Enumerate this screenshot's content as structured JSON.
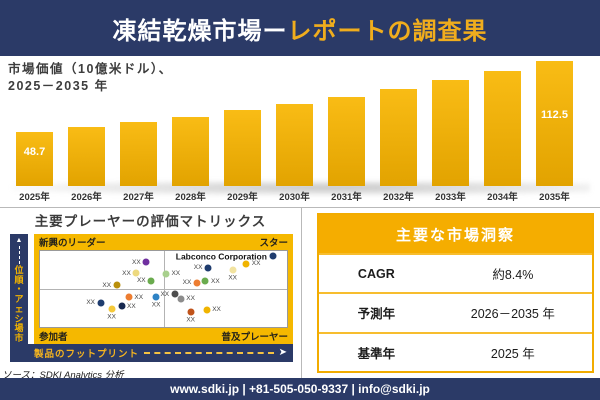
{
  "header": {
    "title_white": "凍結乾燥市場ー",
    "title_gold": "レポートの調査果"
  },
  "chart_data": [
    {
      "type": "bar",
      "title": "市場価値（10億米ドル）、2025－2035年",
      "title_line1": "市場価値（10億米ドル）、",
      "title_line2": "2025－2035 年",
      "categories": [
        "2025年",
        "2026年",
        "2027年",
        "2028年",
        "2029年",
        "2030年",
        "2031年",
        "2032年",
        "2033年",
        "2034年",
        "2035年"
      ],
      "values": [
        48.7,
        53.0,
        57.6,
        62.6,
        68.1,
        74.0,
        80.5,
        87.5,
        95.1,
        103.4,
        112.5
      ],
      "shown_labels": [
        "48.7",
        "",
        "",
        "",
        "",
        "",
        "",
        "",
        "",
        "",
        "112.5"
      ],
      "ylim": [
        0,
        120
      ],
      "xlabel": "",
      "ylabel": "",
      "grid": false,
      "legend": false
    },
    {
      "type": "scatter",
      "title": "主要プレーヤーの評価マトリックス",
      "xlabel": "製品のフットプリント",
      "ylabel": "市場シェア・順位",
      "quadrant_labels": {
        "top_left": "新興のリーダー",
        "top_right": "スター",
        "bottom_left": "参加者",
        "bottom_right": "普及プレーヤー"
      },
      "points": [
        {
          "x": 43,
          "y": 85,
          "color": "#7030A0",
          "label": "XX",
          "label_pos": "left"
        },
        {
          "x": 39,
          "y": 71,
          "color": "#EDD97E",
          "label": "XX",
          "label_pos": "left"
        },
        {
          "x": 45,
          "y": 61,
          "color": "#6AAB4E",
          "label": "XX",
          "label_pos": "left"
        },
        {
          "x": 31,
          "y": 55,
          "color": "#B98F0B",
          "label": "XX",
          "label_pos": "left"
        },
        {
          "x": 94.5,
          "y": 93,
          "color": "#1F3C6E",
          "label": "Labconco Corporation",
          "label_pos": "company"
        },
        {
          "x": 51,
          "y": 70,
          "color": "#A8D08D",
          "label": "XX",
          "label_pos": "right"
        },
        {
          "x": 68,
          "y": 78,
          "color": "#1F3C6E",
          "label": "XX",
          "label_pos": "left"
        },
        {
          "x": 78,
          "y": 75,
          "color": "#F2E3A0",
          "label": "XX",
          "label_pos": "below"
        },
        {
          "x": 83.5,
          "y": 83,
          "color": "#F0B400",
          "label": "XX",
          "label_pos": "right"
        },
        {
          "x": 63.5,
          "y": 58,
          "color": "#ED7D31",
          "label": "XX",
          "label_pos": "left"
        },
        {
          "x": 67,
          "y": 60,
          "color": "#6AAB4E",
          "label": "XX",
          "label_pos": "right"
        },
        {
          "x": 36,
          "y": 39,
          "color": "#ED7D31",
          "label": "XX",
          "label_pos": "right"
        },
        {
          "x": 47,
          "y": 40,
          "color": "#2E83C5",
          "label": "XX",
          "label_pos": "below"
        },
        {
          "x": 24.5,
          "y": 32,
          "color": "#1F3C6E",
          "label": "XX",
          "label_pos": "left"
        },
        {
          "x": 33,
          "y": 27,
          "color": "#17294F",
          "label": "XX",
          "label_pos": "right"
        },
        {
          "x": 29,
          "y": 24,
          "color": "#F5C93A",
          "label": "XX",
          "label_pos": "below"
        },
        {
          "x": 54.5,
          "y": 43,
          "color": "#4D4D4D",
          "label": "XX",
          "label_pos": "left"
        },
        {
          "x": 57,
          "y": 37,
          "color": "#8C8C8C",
          "label": "XX",
          "label_pos": "right"
        },
        {
          "x": 61,
          "y": 20,
          "color": "#C0531B",
          "label": "XX",
          "label_pos": "below"
        },
        {
          "x": 67.5,
          "y": 23,
          "color": "#F0B400",
          "label": "XX",
          "label_pos": "right"
        }
      ]
    }
  ],
  "insights": {
    "title": "主要な市場洞察",
    "rows": [
      {
        "label": "CAGR",
        "value": "約8.4%"
      },
      {
        "label": "予測年",
        "value": "2026－2035 年"
      },
      {
        "label": "基準年",
        "value": "2025 年"
      }
    ]
  },
  "source_text": "ソース：SDKI Analytics 分析",
  "footer": {
    "text": "www.sdki.jp | +81-505-050-9337 | info@sdki.jp"
  },
  "colors": {
    "navy": "#2B3A67",
    "gold": "#F5B800",
    "table_header_gold": "#F5AD00",
    "bar_gradient_top": "#F9BC15",
    "bar_gradient_bottom": "#E2A300",
    "title_gold_text": "#F0AD1D"
  }
}
